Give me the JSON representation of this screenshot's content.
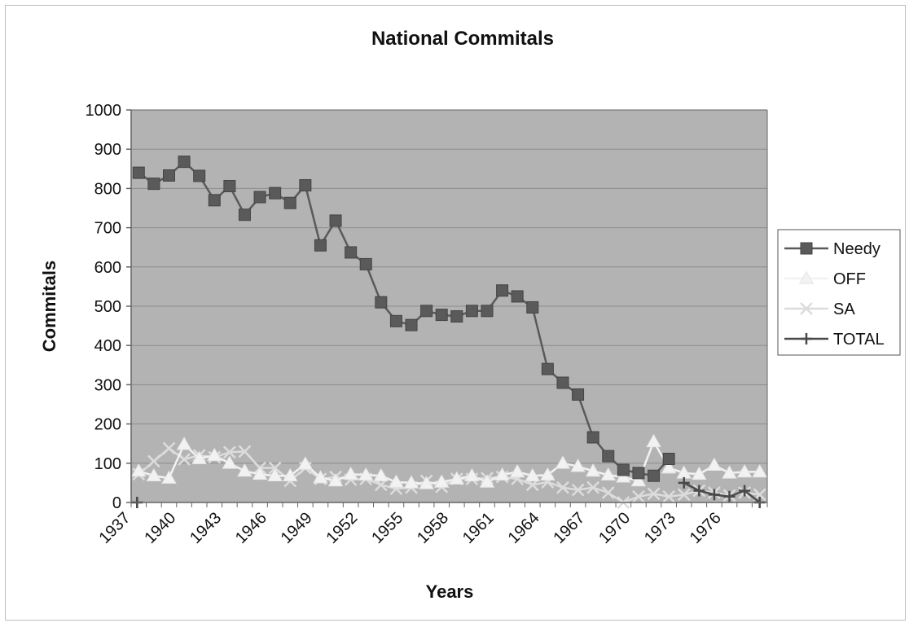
{
  "chart_data": {
    "type": "line",
    "title": "National Commitals",
    "xlabel": "Years",
    "ylabel": "Commitals",
    "ylim": [
      0,
      1000
    ],
    "yticks": [
      0,
      100,
      200,
      300,
      400,
      500,
      600,
      700,
      800,
      900,
      1000
    ],
    "xtick_labels": [
      "1937",
      "1940",
      "1943",
      "1946",
      "1949",
      "1952",
      "1955",
      "1958",
      "1961",
      "1964",
      "1967",
      "1970",
      "1973",
      "1976"
    ],
    "grid": true,
    "legend_position": "right",
    "x": [
      1937,
      1938,
      1939,
      1940,
      1941,
      1942,
      1943,
      1944,
      1945,
      1946,
      1947,
      1948,
      1949,
      1950,
      1951,
      1952,
      1953,
      1954,
      1955,
      1956,
      1957,
      1958,
      1959,
      1960,
      1961,
      1962,
      1963,
      1964,
      1965,
      1966,
      1967,
      1968,
      1969,
      1970,
      1971,
      1972,
      1973,
      1974,
      1975,
      1976,
      1977,
      1978
    ],
    "series": [
      {
        "name": "Needy",
        "marker": "square",
        "color": "#5a5a5a",
        "values": [
          840,
          812,
          833,
          868,
          832,
          770,
          806,
          733,
          778,
          788,
          763,
          808,
          655,
          718,
          637,
          607,
          510,
          462,
          452,
          488,
          478,
          474,
          488,
          488,
          540,
          525,
          497,
          340,
          305,
          275,
          166,
          118,
          83,
          75,
          68,
          111,
          null,
          null,
          null,
          null,
          null,
          null
        ]
      },
      {
        "name": "OFF",
        "marker": "triangle",
        "color": "#f2f2f2",
        "values": [
          80,
          68,
          62,
          148,
          112,
          120,
          100,
          80,
          72,
          68,
          68,
          98,
          63,
          55,
          72,
          70,
          68,
          52,
          50,
          48,
          52,
          60,
          68,
          52,
          70,
          78,
          68,
          70,
          100,
          92,
          80,
          70,
          65,
          55,
          155,
          88,
          75,
          72,
          95,
          75,
          78,
          78
        ]
      },
      {
        "name": "SA",
        "marker": "x",
        "color": "#dcdcdc",
        "values": [
          72,
          105,
          138,
          110,
          120,
          115,
          128,
          130,
          88,
          88,
          55,
          88,
          60,
          65,
          58,
          60,
          45,
          35,
          38,
          55,
          40,
          60,
          60,
          62,
          65,
          60,
          45,
          52,
          38,
          32,
          38,
          25,
          0,
          15,
          22,
          15,
          20,
          30,
          25,
          18,
          25,
          20
        ]
      },
      {
        "name": "TOTAL",
        "marker": "plus",
        "color": "#4a4a4a",
        "values": [
          null,
          null,
          null,
          null,
          null,
          null,
          null,
          null,
          null,
          null,
          null,
          null,
          null,
          null,
          null,
          null,
          null,
          null,
          null,
          null,
          null,
          null,
          null,
          null,
          null,
          null,
          null,
          null,
          null,
          null,
          null,
          null,
          null,
          null,
          null,
          null,
          50,
          30,
          20,
          15,
          30,
          0
        ]
      }
    ]
  },
  "colors": {
    "plot_background": "#b3b3b3",
    "grid": "#8c8c8c",
    "axis": "#666666"
  }
}
